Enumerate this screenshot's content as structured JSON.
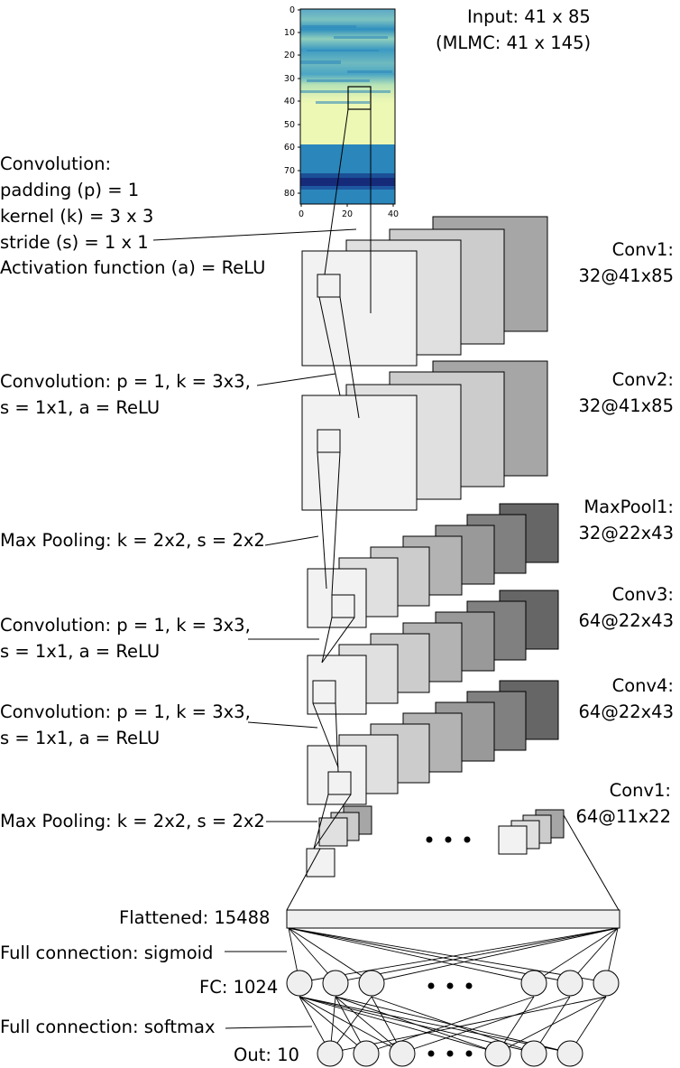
{
  "input": {
    "line1": "Input: 41 x 85",
    "line2": "(MLMC: 41 x 145)",
    "y_ticks": [
      "0",
      "10",
      "20",
      "30",
      "40",
      "50",
      "60",
      "70",
      "80"
    ],
    "x_ticks": [
      "0",
      "20",
      "40"
    ]
  },
  "annotations": {
    "conv_intro": {
      "l1": "Convolution:",
      "l2": "padding (p) = 1",
      "l3": "kernel (k) = 3 x 3",
      "l4": "stride (s) = 1 x 1",
      "l5": "Activation function (a) = ReLU"
    },
    "conv2": {
      "l1": "Convolution: p = 1, k = 3x3,",
      "l2": "s = 1x1, a = ReLU"
    },
    "pool1": {
      "l1": "Max Pooling: k = 2x2, s = 2x2"
    },
    "conv3": {
      "l1": "Convolution: p = 1, k = 3x3,",
      "l2": "s = 1x1, a = ReLU"
    },
    "conv4": {
      "l1": "Convolution: p = 1, k = 3x3,",
      "l2": "s = 1x1, a = ReLU"
    },
    "pool2": {
      "l1": "Max Pooling: k = 2x2, s = 2x2"
    },
    "fc_sigmoid": {
      "l1": "Full connection: sigmoid"
    },
    "fc_softmax": {
      "l1": "Full connection: softmax"
    }
  },
  "layers": {
    "conv1": {
      "name": "Conv1:",
      "shape": "32@41x85"
    },
    "conv2": {
      "name": "Conv2:",
      "shape": "32@41x85"
    },
    "maxpool1": {
      "name": "MaxPool1:",
      "shape": "32@22x43"
    },
    "conv3": {
      "name": "Conv3:",
      "shape": "64@22x43"
    },
    "conv4": {
      "name": "Conv4:",
      "shape": "64@22x43"
    },
    "conv5": {
      "name": "Conv1:",
      "shape": "64@11x22"
    }
  },
  "flattened": {
    "label": "Flattened: 15488"
  },
  "fc": {
    "label": "FC: 1024"
  },
  "out": {
    "label": "Out: 10"
  }
}
